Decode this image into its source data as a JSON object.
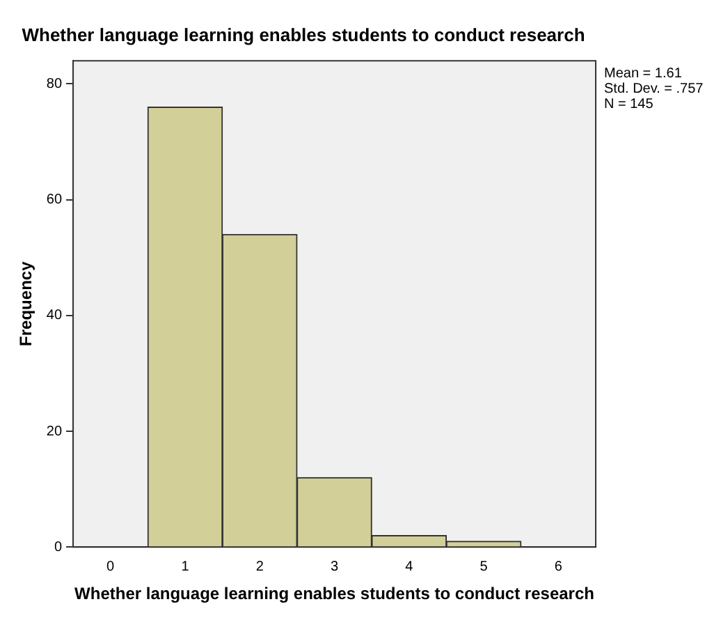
{
  "chart_data": {
    "type": "histogram",
    "title": "Whether language learning enables students to conduct research",
    "xlabel": "Whether language learning enables students to conduct research",
    "ylabel": "Frequency",
    "bins": [
      0.5,
      1.5,
      2.5,
      3.5,
      4.5,
      5.5
    ],
    "values": [
      76,
      54,
      12,
      2,
      1
    ],
    "color": "#d3cf99",
    "xlim": [
      -0.5,
      6.5
    ],
    "xticks": [
      0,
      1,
      2,
      3,
      4,
      5,
      6
    ],
    "ylim": [
      0,
      84
    ],
    "yticks": [
      0,
      20,
      40,
      60,
      80
    ],
    "grid": false,
    "legend": false,
    "annotations": [
      "Mean = 1.61",
      "Std. Dev. = .757",
      "N = 145"
    ]
  }
}
